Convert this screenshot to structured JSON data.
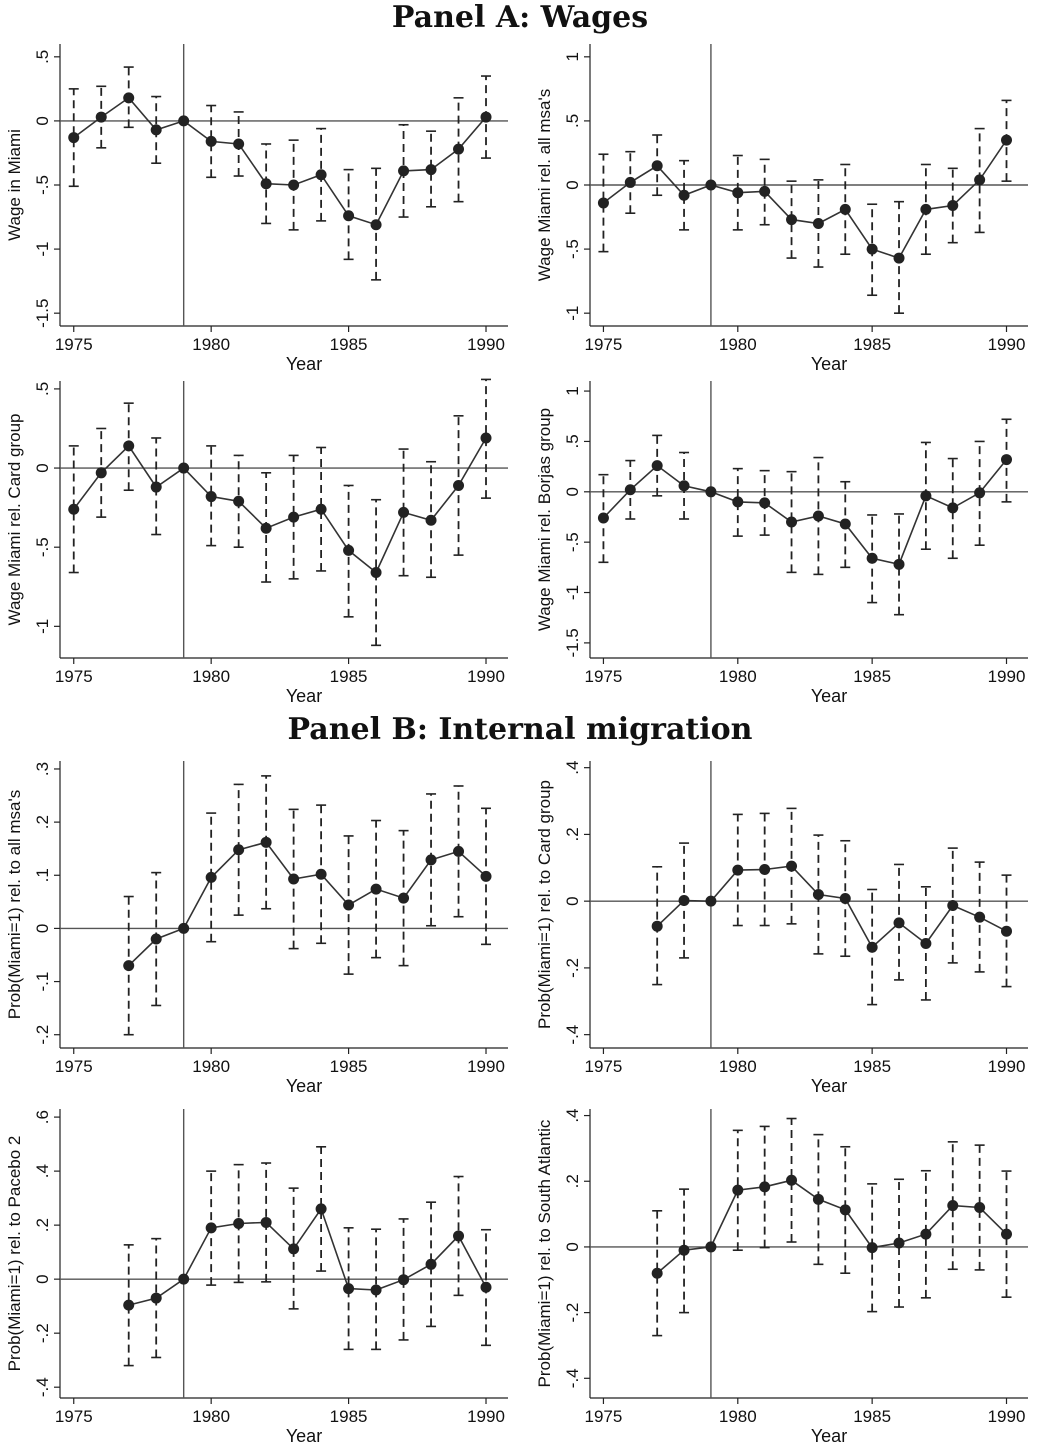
{
  "panel_titles": {
    "a": "Panel A: Wages",
    "b": "Panel B: Internal migration"
  },
  "chart_data": [
    {
      "id": "a1",
      "type": "line",
      "title": "",
      "xlabel": "Year",
      "ylabel": "Wage in Miami",
      "xticks": [
        1975,
        1980,
        1985,
        1990
      ],
      "xlim": [
        1974.5,
        1990.8
      ],
      "yticks": [
        ".5",
        "0",
        "-.5",
        "-1",
        "-1.5"
      ],
      "ytick_values": [
        0.5,
        0,
        -0.5,
        -1,
        -1.5
      ],
      "ylim": [
        -1.6,
        0.6
      ],
      "vline": 1979,
      "hline": 0,
      "x": [
        1975,
        1976,
        1977,
        1978,
        1979,
        1980,
        1981,
        1982,
        1983,
        1984,
        1985,
        1986,
        1987,
        1988,
        1989,
        1990
      ],
      "y": [
        -0.13,
        0.03,
        0.18,
        -0.07,
        0,
        -0.16,
        -0.18,
        -0.49,
        -0.5,
        -0.42,
        -0.74,
        -0.81,
        -0.39,
        -0.38,
        -0.22,
        0.03
      ],
      "ci_low": [
        -0.51,
        -0.21,
        -0.05,
        -0.33,
        0,
        -0.44,
        -0.43,
        -0.8,
        -0.85,
        -0.78,
        -1.08,
        -1.24,
        -0.75,
        -0.67,
        -0.63,
        -0.29
      ],
      "ci_high": [
        0.25,
        0.27,
        0.42,
        0.19,
        0,
        0.12,
        0.07,
        -0.18,
        -0.15,
        -0.06,
        -0.38,
        -0.37,
        -0.03,
        -0.08,
        0.18,
        0.35
      ]
    },
    {
      "id": "a2",
      "type": "line",
      "title": "",
      "xlabel": "Year",
      "ylabel": "Wage Miami rel. all msa's",
      "xticks": [
        1975,
        1980,
        1985,
        1990
      ],
      "xlim": [
        1974.5,
        1990.8
      ],
      "yticks": [
        "1",
        ".5",
        "0",
        "-.5",
        "-1"
      ],
      "ytick_values": [
        1,
        0.5,
        0,
        -0.5,
        -1
      ],
      "ylim": [
        -1.1,
        1.1
      ],
      "vline": 1979,
      "hline": 0,
      "x": [
        1975,
        1976,
        1977,
        1978,
        1979,
        1980,
        1981,
        1982,
        1983,
        1984,
        1985,
        1986,
        1987,
        1988,
        1989,
        1990
      ],
      "y": [
        -0.14,
        0.02,
        0.15,
        -0.08,
        0,
        -0.06,
        -0.05,
        -0.27,
        -0.3,
        -0.19,
        -0.5,
        -0.57,
        -0.19,
        -0.16,
        0.04,
        0.35
      ],
      "ci_low": [
        -0.52,
        -0.22,
        -0.08,
        -0.35,
        0,
        -0.35,
        -0.31,
        -0.57,
        -0.64,
        -0.54,
        -0.86,
        -1.0,
        -0.54,
        -0.45,
        -0.37,
        0.03
      ],
      "ci_high": [
        0.24,
        0.26,
        0.39,
        0.19,
        0,
        0.23,
        0.2,
        0.03,
        0.04,
        0.16,
        -0.15,
        -0.13,
        0.16,
        0.13,
        0.44,
        0.66
      ]
    },
    {
      "id": "a3",
      "type": "line",
      "title": "",
      "xlabel": "Year",
      "ylabel": "Wage Miami rel. Card group",
      "xticks": [
        1975,
        1980,
        1985,
        1990
      ],
      "xlim": [
        1974.5,
        1990.8
      ],
      "yticks": [
        ".5",
        "0",
        "-.5",
        "-1"
      ],
      "ytick_values": [
        0.5,
        0,
        -0.5,
        -1
      ],
      "ylim": [
        -1.2,
        0.55
      ],
      "vline": 1979,
      "hline": 0,
      "x": [
        1975,
        1976,
        1977,
        1978,
        1979,
        1980,
        1981,
        1982,
        1983,
        1984,
        1985,
        1986,
        1987,
        1988,
        1989,
        1990
      ],
      "y": [
        -0.26,
        -0.03,
        0.14,
        -0.12,
        0,
        -0.18,
        -0.21,
        -0.38,
        -0.31,
        -0.26,
        -0.52,
        -0.66,
        -0.28,
        -0.33,
        -0.11,
        0.19
      ],
      "ci_low": [
        -0.66,
        -0.31,
        -0.14,
        -0.42,
        0,
        -0.49,
        -0.5,
        -0.72,
        -0.7,
        -0.65,
        -0.94,
        -1.12,
        -0.68,
        -0.69,
        -0.55,
        -0.19
      ],
      "ci_high": [
        0.14,
        0.25,
        0.41,
        0.19,
        0,
        0.14,
        0.08,
        -0.03,
        0.08,
        0.13,
        -0.11,
        -0.2,
        0.12,
        0.04,
        0.33,
        0.56
      ]
    },
    {
      "id": "a4",
      "type": "line",
      "title": "",
      "xlabel": "Year",
      "ylabel": "Wage Miami rel. Borjas group",
      "xticks": [
        1975,
        1980,
        1985,
        1990
      ],
      "xlim": [
        1974.5,
        1990.8
      ],
      "yticks": [
        "1",
        ".5",
        "0",
        "-.5",
        "-1",
        "-1.5"
      ],
      "ytick_values": [
        1,
        0.5,
        0,
        -0.5,
        -1,
        -1.5
      ],
      "ylim": [
        -1.65,
        1.1
      ],
      "vline": 1979,
      "hline": 0,
      "x": [
        1975,
        1976,
        1977,
        1978,
        1979,
        1980,
        1981,
        1982,
        1983,
        1984,
        1985,
        1986,
        1987,
        1988,
        1989,
        1990
      ],
      "y": [
        -0.26,
        0.02,
        0.26,
        0.06,
        0,
        -0.1,
        -0.11,
        -0.3,
        -0.24,
        -0.32,
        -0.66,
        -0.72,
        -0.04,
        -0.16,
        -0.01,
        0.32
      ],
      "ci_low": [
        -0.7,
        -0.27,
        -0.04,
        -0.27,
        0,
        -0.44,
        -0.43,
        -0.8,
        -0.82,
        -0.75,
        -1.1,
        -1.22,
        -0.57,
        -0.66,
        -0.53,
        -0.1
      ],
      "ci_high": [
        0.17,
        0.31,
        0.56,
        0.39,
        0,
        0.23,
        0.21,
        0.2,
        0.34,
        0.1,
        -0.23,
        -0.22,
        0.49,
        0.33,
        0.5,
        0.72
      ]
    },
    {
      "id": "b1",
      "type": "line",
      "title": "",
      "xlabel": "Year",
      "ylabel": "Prob(Miami=1) rel. to all msa's",
      "xticks": [
        1975,
        1980,
        1985,
        1990
      ],
      "xlim": [
        1974.5,
        1990.8
      ],
      "yticks": [
        ".3",
        ".2",
        ".1",
        "0",
        "-.1",
        "-.2"
      ],
      "ytick_values": [
        0.3,
        0.2,
        0.1,
        0,
        -0.1,
        -0.2
      ],
      "ylim": [
        -0.225,
        0.315
      ],
      "vline": 1979,
      "hline": 0,
      "x": [
        1977,
        1978,
        1979,
        1980,
        1981,
        1982,
        1983,
        1984,
        1985,
        1986,
        1987,
        1988,
        1989,
        1990
      ],
      "y": [
        -0.07,
        -0.02,
        0,
        0.096,
        0.148,
        0.162,
        0.093,
        0.102,
        0.044,
        0.074,
        0.057,
        0.129,
        0.145,
        0.098
      ],
      "ci_low": [
        -0.2,
        -0.145,
        0,
        -0.025,
        0.025,
        0.037,
        -0.038,
        -0.028,
        -0.086,
        -0.055,
        -0.07,
        0.005,
        0.022,
        -0.03
      ],
      "ci_high": [
        0.06,
        0.105,
        0,
        0.217,
        0.271,
        0.287,
        0.224,
        0.232,
        0.174,
        0.203,
        0.184,
        0.253,
        0.268,
        0.226
      ]
    },
    {
      "id": "b2",
      "type": "line",
      "title": "",
      "xlabel": "Year",
      "ylabel": "Prob(Miami=1) rel. to Card group",
      "xticks": [
        1975,
        1980,
        1985,
        1990
      ],
      "xlim": [
        1974.5,
        1990.8
      ],
      "yticks": [
        ".4",
        ".2",
        "0",
        "-.2",
        "-.4"
      ],
      "ytick_values": [
        0.4,
        0.2,
        0,
        -0.2,
        -0.4
      ],
      "ylim": [
        -0.44,
        0.42
      ],
      "vline": 1979,
      "hline": 0,
      "x": [
        1977,
        1978,
        1979,
        1980,
        1981,
        1982,
        1983,
        1984,
        1985,
        1986,
        1987,
        1988,
        1989,
        1990
      ],
      "y": [
        -0.075,
        0.002,
        0,
        0.093,
        0.095,
        0.105,
        0.02,
        0.008,
        -0.138,
        -0.065,
        -0.127,
        -0.013,
        -0.048,
        -0.09
      ],
      "ci_low": [
        -0.25,
        -0.17,
        0,
        -0.073,
        -0.073,
        -0.068,
        -0.158,
        -0.165,
        -0.31,
        -0.236,
        -0.296,
        -0.185,
        -0.212,
        -0.256
      ],
      "ci_high": [
        0.103,
        0.174,
        0,
        0.26,
        0.263,
        0.278,
        0.198,
        0.181,
        0.035,
        0.11,
        0.043,
        0.159,
        0.117,
        0.078
      ]
    },
    {
      "id": "b3",
      "type": "line",
      "title": "",
      "xlabel": "Year",
      "ylabel": "Prob(Miami=1) rel. to Pacebo 2",
      "xticks": [
        1975,
        1980,
        1985,
        1990
      ],
      "xlim": [
        1974.5,
        1990.8
      ],
      "yticks": [
        ".6",
        ".4",
        ".2",
        "0",
        "-.2",
        "-.4"
      ],
      "ytick_values": [
        0.6,
        0.4,
        0.2,
        0,
        -0.2,
        -0.4
      ],
      "ylim": [
        -0.44,
        0.63
      ],
      "vline": 1979,
      "hline": 0,
      "x": [
        1977,
        1978,
        1979,
        1980,
        1981,
        1982,
        1983,
        1984,
        1985,
        1986,
        1987,
        1988,
        1989,
        1990
      ],
      "y": [
        -0.096,
        -0.07,
        0,
        0.19,
        0.206,
        0.21,
        0.112,
        0.26,
        -0.035,
        -0.04,
        -0.002,
        0.055,
        0.16,
        -0.03
      ],
      "ci_low": [
        -0.32,
        -0.29,
        0,
        -0.022,
        -0.012,
        -0.01,
        -0.11,
        0.03,
        -0.26,
        -0.26,
        -0.225,
        -0.175,
        -0.06,
        -0.245
      ],
      "ci_high": [
        0.127,
        0.15,
        0,
        0.4,
        0.424,
        0.43,
        0.337,
        0.49,
        0.19,
        0.185,
        0.223,
        0.285,
        0.38,
        0.183
      ]
    },
    {
      "id": "b4",
      "type": "line",
      "title": "",
      "xlabel": "Year",
      "ylabel": "Prob(Miami=1) rel. to South Atlantic",
      "xticks": [
        1975,
        1980,
        1985,
        1990
      ],
      "xlim": [
        1974.5,
        1990.8
      ],
      "yticks": [
        ".4",
        ".2",
        "0",
        "-.2",
        "-.4"
      ],
      "ytick_values": [
        0.4,
        0.2,
        0,
        -0.2,
        -0.4
      ],
      "ylim": [
        -0.46,
        0.42
      ],
      "vline": 1979,
      "hline": 0,
      "x": [
        1977,
        1978,
        1979,
        1980,
        1981,
        1982,
        1983,
        1984,
        1985,
        1986,
        1987,
        1988,
        1989,
        1990
      ],
      "y": [
        -0.08,
        -0.01,
        0,
        0.173,
        0.183,
        0.203,
        0.145,
        0.113,
        -0.002,
        0.012,
        0.039,
        0.126,
        0.12,
        0.039
      ],
      "ci_low": [
        -0.27,
        -0.2,
        0,
        -0.01,
        -0.002,
        0.015,
        -0.053,
        -0.08,
        -0.197,
        -0.183,
        -0.155,
        -0.068,
        -0.07,
        -0.153
      ],
      "ci_high": [
        0.11,
        0.176,
        0,
        0.355,
        0.367,
        0.391,
        0.342,
        0.305,
        0.192,
        0.206,
        0.232,
        0.32,
        0.31,
        0.231
      ]
    }
  ]
}
